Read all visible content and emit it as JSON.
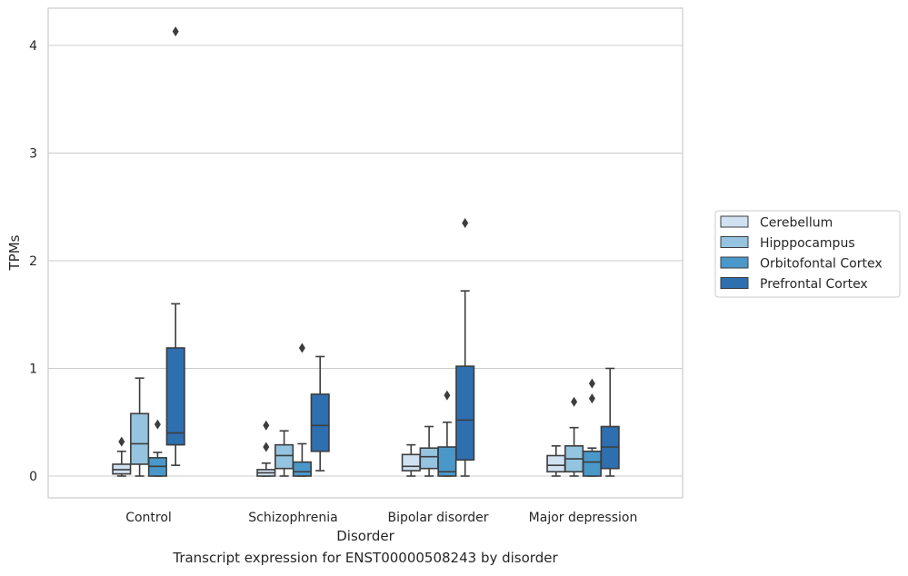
{
  "caption": "Transcript expression for ENST00000508243 by disorder",
  "chart_data": {
    "type": "box",
    "title": "",
    "xlabel": "Disorder",
    "ylabel": "TPMs",
    "categories": [
      "Control",
      "Schizophrenia",
      "Bipolar disorder",
      "Major depression"
    ],
    "ylim": [
      -0.2,
      4.35
    ],
    "yticks": [
      0,
      1,
      2,
      3,
      4
    ],
    "grid": "horizontal",
    "legend": {
      "placement": "right",
      "entries": [
        "Cerebellum",
        "Hipppocampus",
        "Orbitofontal Cortex",
        "Prefrontal Cortex"
      ]
    },
    "series": [
      {
        "name": "Cerebellum",
        "color": "#d0e1f2",
        "boxes": [
          {
            "whislo": 0.0,
            "q1": 0.02,
            "med": 0.06,
            "q3": 0.11,
            "whishi": 0.23,
            "fliers": [
              0.32
            ]
          },
          {
            "whislo": 0.0,
            "q1": 0.0,
            "med": 0.03,
            "q3": 0.06,
            "whishi": 0.12,
            "fliers": [
              0.27,
              0.47
            ]
          },
          {
            "whislo": 0.0,
            "q1": 0.05,
            "med": 0.09,
            "q3": 0.2,
            "whishi": 0.29,
            "fliers": []
          },
          {
            "whislo": 0.0,
            "q1": 0.04,
            "med": 0.1,
            "q3": 0.19,
            "whishi": 0.28,
            "fliers": []
          }
        ]
      },
      {
        "name": "Hipppocampus",
        "color": "#94c4df",
        "boxes": [
          {
            "whislo": 0.0,
            "q1": 0.11,
            "med": 0.3,
            "q3": 0.58,
            "whishi": 0.91,
            "fliers": []
          },
          {
            "whislo": 0.0,
            "q1": 0.07,
            "med": 0.19,
            "q3": 0.29,
            "whishi": 0.42,
            "fliers": []
          },
          {
            "whislo": 0.0,
            "q1": 0.07,
            "med": 0.18,
            "q3": 0.26,
            "whishi": 0.46,
            "fliers": []
          },
          {
            "whislo": 0.0,
            "q1": 0.04,
            "med": 0.16,
            "q3": 0.28,
            "whishi": 0.45,
            "fliers": [
              0.69
            ]
          }
        ]
      },
      {
        "name": "Orbitofontal Cortex",
        "color": "#4a98c9",
        "boxes": [
          {
            "whislo": 0.0,
            "q1": 0.0,
            "med": 0.09,
            "q3": 0.17,
            "whishi": 0.22,
            "fliers": [
              0.48
            ]
          },
          {
            "whislo": 0.0,
            "q1": 0.0,
            "med": 0.04,
            "q3": 0.13,
            "whishi": 0.3,
            "fliers": [
              1.19
            ]
          },
          {
            "whislo": 0.0,
            "q1": 0.0,
            "med": 0.04,
            "q3": 0.27,
            "whishi": 0.5,
            "fliers": [
              0.75
            ]
          },
          {
            "whislo": 0.0,
            "q1": 0.0,
            "med": 0.13,
            "q3": 0.23,
            "whishi": 0.26,
            "fliers": [
              0.72,
              0.86
            ]
          }
        ]
      },
      {
        "name": "Prefrontal Cortex",
        "color": "#2e6fb0",
        "boxes": [
          {
            "whislo": 0.1,
            "q1": 0.29,
            "med": 0.4,
            "q3": 1.19,
            "whishi": 1.6,
            "fliers": [
              4.13
            ]
          },
          {
            "whislo": 0.05,
            "q1": 0.23,
            "med": 0.47,
            "q3": 0.76,
            "whishi": 1.11,
            "fliers": []
          },
          {
            "whislo": 0.0,
            "q1": 0.15,
            "med": 0.52,
            "q3": 1.02,
            "whishi": 1.72,
            "fliers": [
              2.35
            ]
          },
          {
            "whislo": 0.0,
            "q1": 0.07,
            "med": 0.27,
            "q3": 0.46,
            "whishi": 1.0,
            "fliers": []
          }
        ]
      }
    ]
  }
}
